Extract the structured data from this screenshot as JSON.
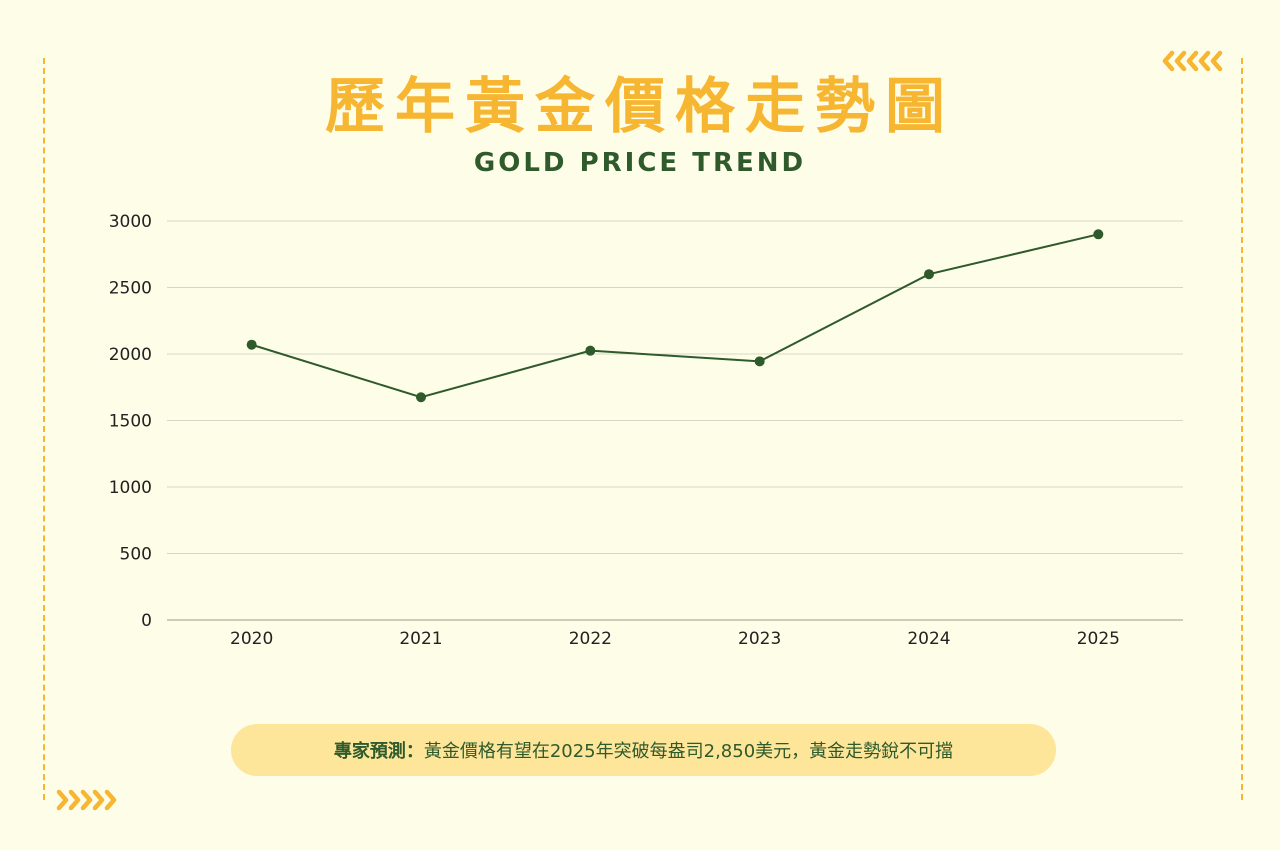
{
  "title": "歷年黃金價格走勢圖",
  "subtitle": "GOLD PRICE TREND",
  "footer": {
    "label": "專家預測：",
    "text": " 黃金價格有望在2025年突破每盎司2,850美元，黃金走勢銳不可擋"
  },
  "colors": {
    "accent": "#f7b631",
    "line": "#2f5a2b",
    "background": "#fefde8",
    "footer_bg": "#fde59a"
  },
  "chart_data": {
    "type": "line",
    "x": [
      "2020",
      "2021",
      "2022",
      "2023",
      "2024",
      "2025"
    ],
    "series": [
      {
        "values": [
          2070,
          1675,
          2025,
          1945,
          2600,
          2900
        ]
      }
    ],
    "ylim": [
      0,
      3000
    ],
    "yticks": [
      "0",
      "500",
      "1000",
      "1500",
      "2000",
      "2500",
      "3000"
    ],
    "grid": true,
    "legend": "none"
  }
}
